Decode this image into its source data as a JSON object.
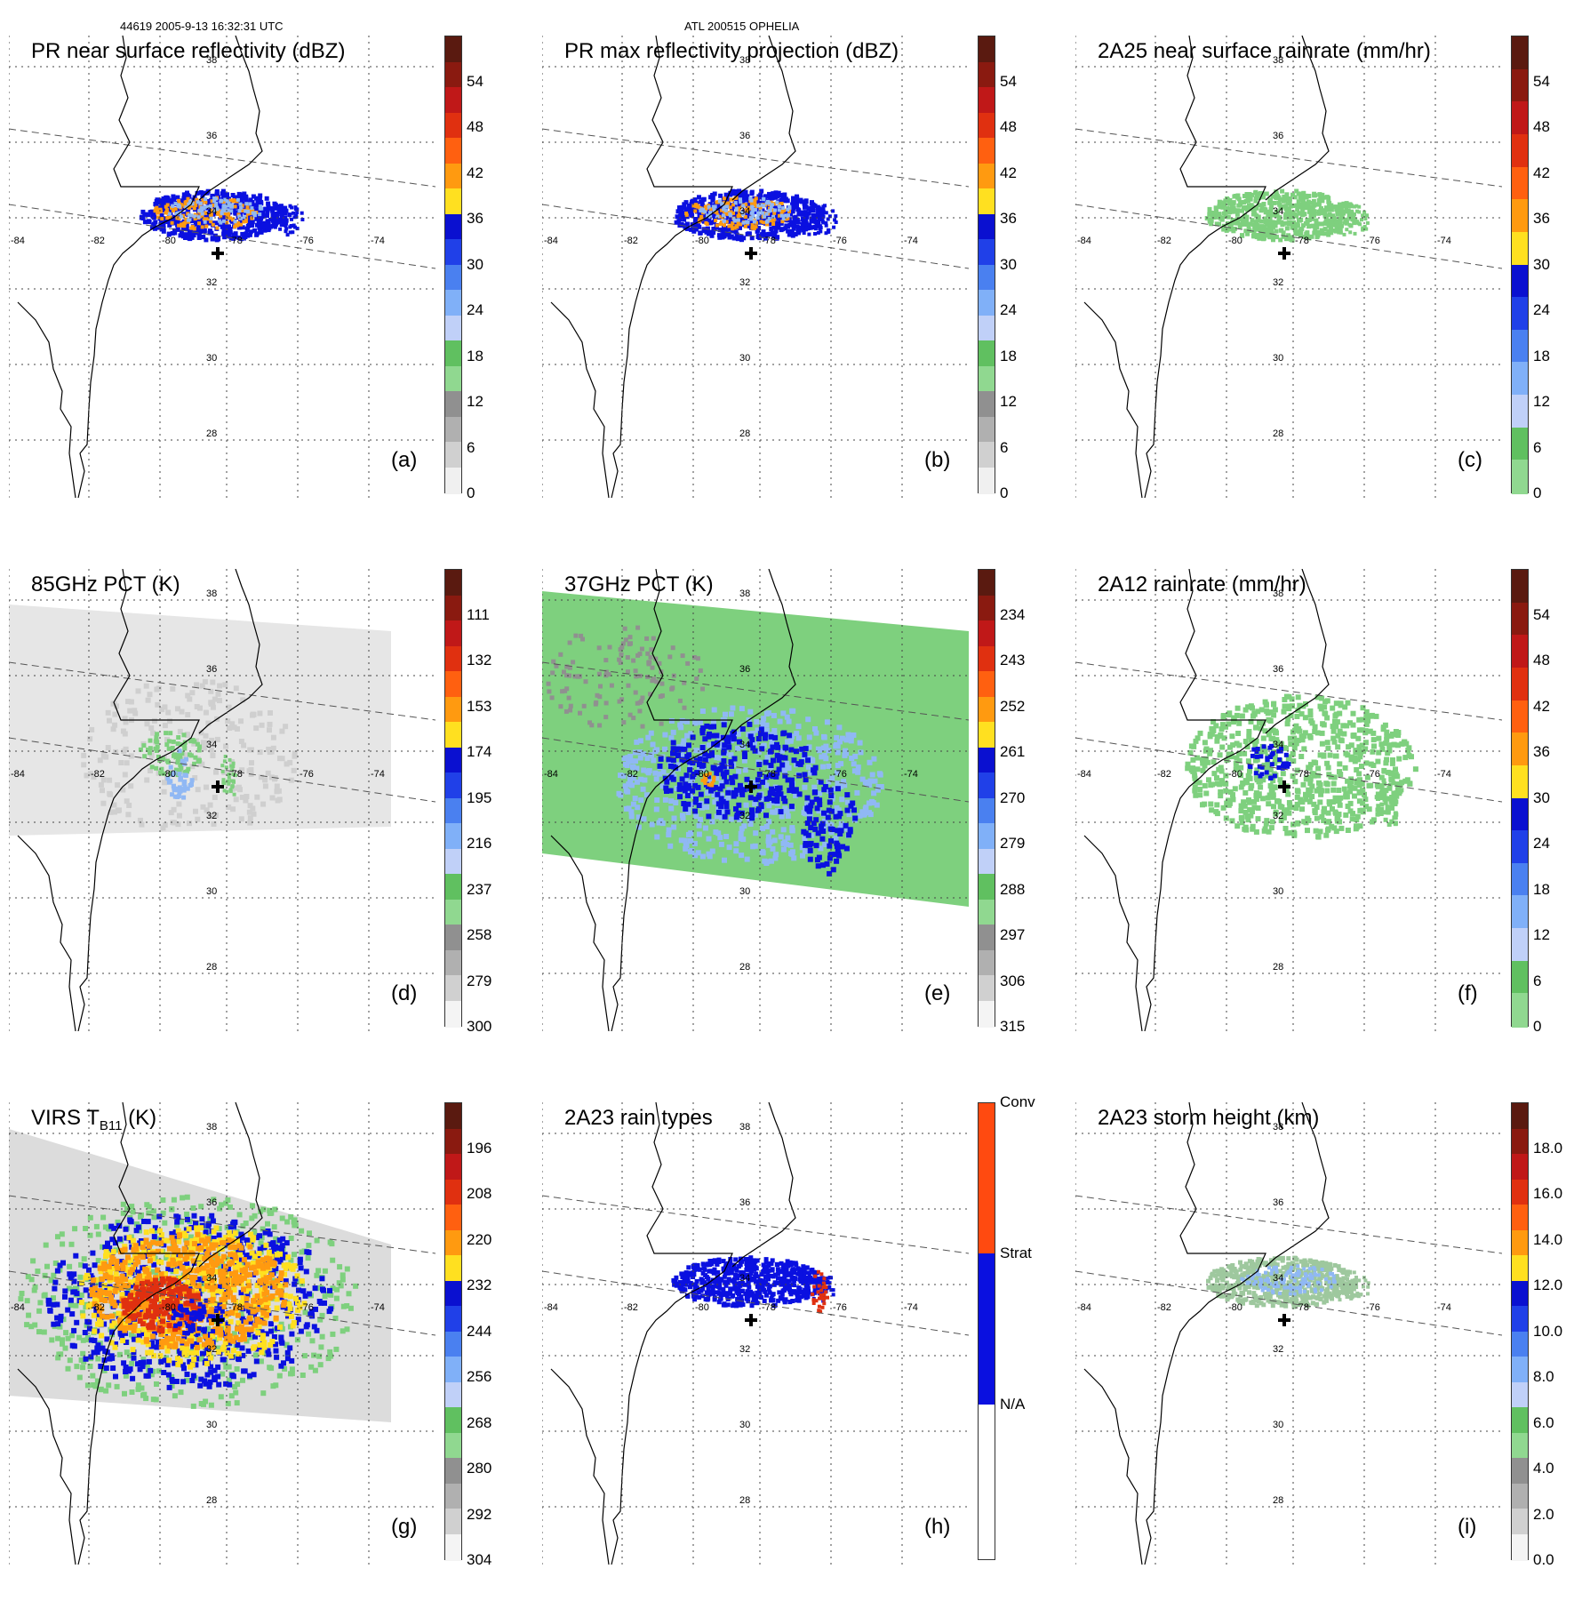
{
  "header": {
    "left": "44619 2005-9-13 16:32:31 UTC",
    "center": "ATL 200515 OPHELIA"
  },
  "lon_labels": [
    "-84",
    "-82",
    "-80",
    "-78",
    "-76",
    "-74"
  ],
  "lat_labels": [
    "38",
    "36",
    "34",
    "32",
    "30",
    "28"
  ],
  "panels": [
    {
      "id": "a",
      "title": "PR near surface reflectivity (dBZ)",
      "label": "(a)",
      "ticks": [
        "54",
        "48",
        "42",
        "36",
        "30",
        "24",
        "18",
        "12",
        "6",
        "0"
      ],
      "scheme": "dbz",
      "pattern": "swath-pr"
    },
    {
      "id": "b",
      "title": "PR max reflectivity projection (dBZ)",
      "label": "(b)",
      "ticks": [
        "54",
        "48",
        "42",
        "36",
        "30",
        "24",
        "18",
        "12",
        "6",
        "0"
      ],
      "scheme": "dbz",
      "pattern": "swath-pr"
    },
    {
      "id": "c",
      "title": "2A25 near surface rainrate (mm/hr)",
      "label": "(c)",
      "ticks": [
        "54",
        "48",
        "42",
        "36",
        "30",
        "24",
        "18",
        "12",
        "6",
        "0"
      ],
      "scheme": "rain",
      "pattern": "swath-rain"
    },
    {
      "id": "d",
      "title": "85GHz PCT (K)",
      "label": "(d)",
      "ticks": [
        "111",
        "132",
        "153",
        "174",
        "195",
        "216",
        "237",
        "258",
        "279",
        "300"
      ],
      "scheme": "pct",
      "pattern": "tmi-85"
    },
    {
      "id": "e",
      "title": "37GHz PCT (K)",
      "label": "(e)",
      "ticks": [
        "234",
        "243",
        "252",
        "261",
        "270",
        "279",
        "288",
        "297",
        "306",
        "315"
      ],
      "scheme": "pct",
      "pattern": "tmi-37"
    },
    {
      "id": "f",
      "title": "2A12 rainrate (mm/hr)",
      "label": "(f)",
      "ticks": [
        "54",
        "48",
        "42",
        "36",
        "30",
        "24",
        "18",
        "12",
        "6",
        "0"
      ],
      "scheme": "rain",
      "pattern": "tmi-rain"
    },
    {
      "id": "g",
      "title": "VIRS T",
      "title_sub": "B11",
      "title_end": " (K)",
      "label": "(g)",
      "ticks": [
        "196",
        "208",
        "220",
        "232",
        "244",
        "256",
        "268",
        "280",
        "292",
        "304"
      ],
      "scheme": "pct",
      "pattern": "virs"
    },
    {
      "id": "h",
      "title": "2A23 rain types",
      "label": "(h)",
      "ticks": [
        "Conv",
        "Strat",
        "N/A"
      ],
      "scheme": "types",
      "pattern": "types"
    },
    {
      "id": "i",
      "title": "2A23 storm height (km)",
      "label": "(i)",
      "ticks": [
        "18.0",
        "16.0",
        "14.0",
        "12.0",
        "10.0",
        "8.0",
        "6.0",
        "4.0",
        "2.0",
        "0.0"
      ],
      "scheme": "height",
      "pattern": "height"
    }
  ],
  "colors": {
    "dbz": [
      "#5a1a10",
      "#8a1a10",
      "#c01818",
      "#e03010",
      "#ff6010",
      "#ff9a10",
      "#ffe020",
      "#0a10d0",
      "#2040e8",
      "#4a80f0",
      "#80b0f8",
      "#c0d0f8",
      "#60c060",
      "#90d890",
      "#909090",
      "#b0b0b0",
      "#d0d0d0",
      "#f0f0f0"
    ],
    "rain": [
      "#5a1a10",
      "#8a1a10",
      "#c01818",
      "#e03010",
      "#ff6010",
      "#ff9a10",
      "#ffe020",
      "#0a10d0",
      "#2040e8",
      "#4a80f0",
      "#80b0f8",
      "#c0d0f8",
      "#60c060",
      "#90d890"
    ],
    "pct": [
      "#5a1a10",
      "#8a1a10",
      "#c01818",
      "#e03010",
      "#ff6010",
      "#ff9a10",
      "#ffe020",
      "#0a10d0",
      "#2040e8",
      "#4a80f0",
      "#80b0f8",
      "#c0d0f8",
      "#60c060",
      "#90d890",
      "#909090",
      "#b0b0b0",
      "#d0d0d0",
      "#f4f4f4"
    ],
    "height": [
      "#5a1a10",
      "#8a1a10",
      "#c01818",
      "#e03010",
      "#ff6010",
      "#ff9a10",
      "#ffe020",
      "#0a10d0",
      "#2040e8",
      "#4a80f0",
      "#80b0f8",
      "#c0d0f8",
      "#60c060",
      "#90d890",
      "#909090",
      "#b0b0b0",
      "#d0d0d0",
      "#f4f4f4"
    ],
    "types": [
      "#ff4a10",
      "#0a10e0",
      "#ffffff"
    ],
    "tmi37_bg": "#7ed07e",
    "tmi85_bg": "#e6e6e6",
    "rain_green": "#7ed07e",
    "blue": "#0a10e0",
    "orange": "#ff9a10",
    "red": "#e03010",
    "yellow": "#ffe020",
    "light_blue": "#90b8f4"
  }
}
